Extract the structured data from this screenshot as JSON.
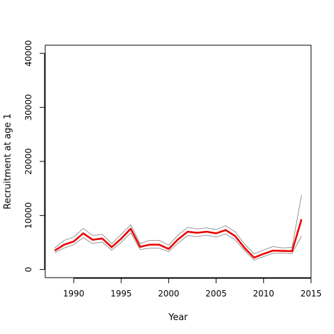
{
  "chart_data": {
    "type": "line",
    "title": "",
    "xlabel": "Year",
    "ylabel": "Recruitment at age 1",
    "xlim": [
      1987,
      2015
    ],
    "ylim": [
      -1500,
      41500
    ],
    "x_ticks": [
      1990,
      1995,
      2000,
      2005,
      2010,
      2015
    ],
    "y_ticks": [
      0,
      10000,
      20000,
      30000,
      40000
    ],
    "grid": false,
    "legend": "none",
    "x": [
      1988,
      1989,
      1990,
      1991,
      1992,
      1993,
      1994,
      1995,
      1996,
      1997,
      1998,
      1999,
      2000,
      2001,
      2002,
      2003,
      2004,
      2005,
      2006,
      2007,
      2008,
      2009,
      2010,
      2011,
      2012,
      2013,
      2014
    ],
    "series": [
      {
        "role": "estimate",
        "color": "#ee0000",
        "values": [
          3500,
          4600,
          5200,
          6700,
          5500,
          5750,
          4150,
          5700,
          7550,
          4200,
          4600,
          4600,
          3800,
          5600,
          7000,
          6800,
          7000,
          6700,
          7300,
          6200,
          4000,
          2200,
          2900,
          3500,
          3450,
          3400,
          9300
        ]
      },
      {
        "role": "upper",
        "color": "#888888",
        "values": [
          4000,
          5400,
          6000,
          7600,
          6300,
          6500,
          4800,
          6500,
          8300,
          4800,
          5400,
          5400,
          4500,
          6400,
          7800,
          7500,
          7700,
          7400,
          8100,
          7000,
          4700,
          2900,
          3600,
          4250,
          4000,
          4100,
          13800
        ]
      },
      {
        "role": "lower",
        "color": "#888888",
        "values": [
          3100,
          4000,
          4600,
          5900,
          4800,
          5100,
          3600,
          5000,
          6800,
          3700,
          3950,
          3950,
          3300,
          4900,
          6300,
          6100,
          6350,
          6000,
          6600,
          5500,
          3500,
          1750,
          2400,
          3000,
          3050,
          2950,
          6200
        ]
      }
    ]
  }
}
